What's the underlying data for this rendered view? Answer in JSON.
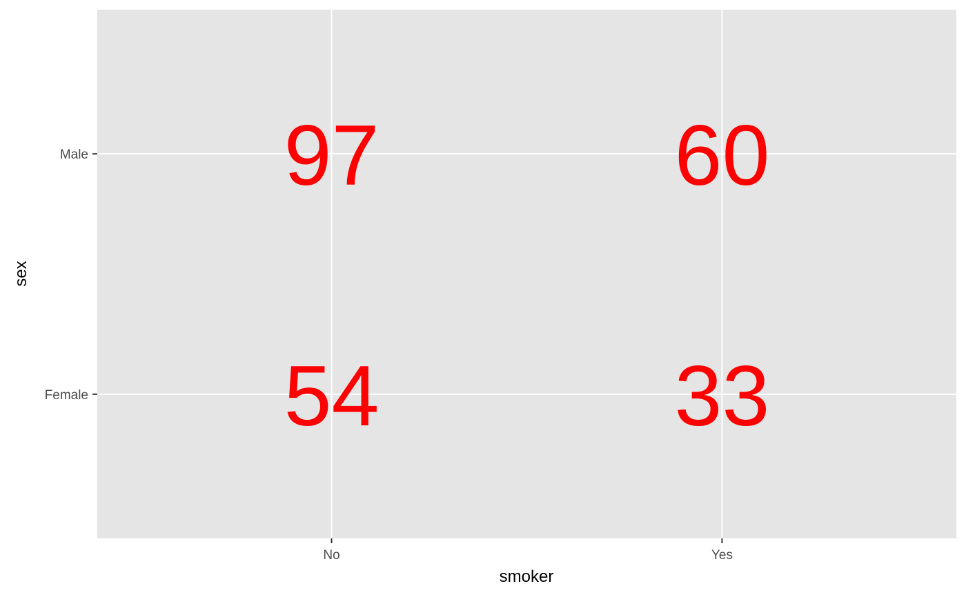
{
  "chart_data": {
    "type": "table",
    "x": [
      "No",
      "Yes"
    ],
    "y": [
      "Female",
      "Male"
    ],
    "cells": [
      {
        "x": "No",
        "y": "Male",
        "value": 97
      },
      {
        "x": "Yes",
        "y": "Male",
        "value": 60
      },
      {
        "x": "No",
        "y": "Female",
        "value": 54
      },
      {
        "x": "Yes",
        "y": "Female",
        "value": 33
      }
    ],
    "xlabel": "smoker",
    "ylabel": "sex",
    "grid": true,
    "colors": {
      "panel_background": "#e5e5e5",
      "grid": "#ffffff",
      "value_text": "#ff0000",
      "tick_text": "#4d4d4d",
      "tick_mark": "#333333"
    }
  }
}
